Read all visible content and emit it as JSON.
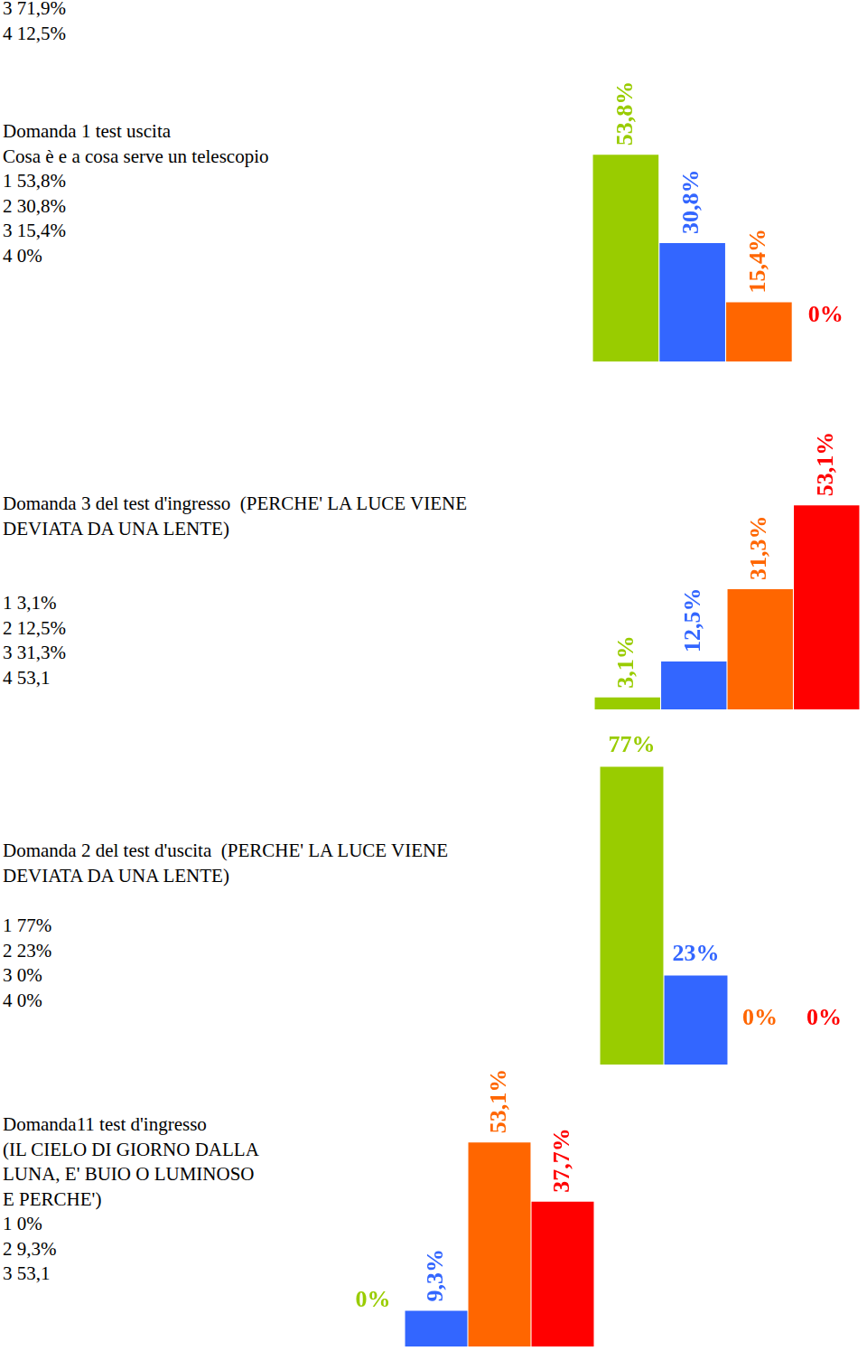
{
  "document": {
    "top_lines": [
      "3 71,9%",
      "4 12,5%"
    ],
    "sections": [
      {
        "heading": [
          "Domanda 1 test uscita",
          "Cosa è e a cosa serve un telescopio"
        ],
        "options": [
          "1 53,8%",
          "2 30,8%",
          "3 15,4%",
          "4 0%"
        ]
      },
      {
        "heading": [
          "Domanda 3 del test d'ingresso  (PERCHE' LA LUCE VIENE",
          "DEVIATA DA UNA LENTE)"
        ],
        "options": [
          "1 3,1%",
          "2 12,5%",
          "3 31,3%",
          "4 53,1"
        ]
      },
      {
        "heading": [
          "Domanda 2 del test d'uscita  (PERCHE' LA LUCE VIENE",
          "DEVIATA DA UNA LENTE)"
        ],
        "options": [
          "1 77%",
          "2 23%",
          "3 0%",
          "4 0%"
        ]
      },
      {
        "heading": [
          "Domanda11 test d'ingresso",
          "(IL CIELO DI GIORNO DALLA",
          "LUNA, E' BUIO O LUMINOSO",
          "E PERCHE')"
        ],
        "options": [
          "1 0%",
          "2 9,3%",
          "3 53,1"
        ]
      }
    ]
  },
  "chart_data": [
    {
      "type": "bar",
      "categories": [
        null,
        null,
        null,
        null
      ],
      "values": [
        53.8,
        30.8,
        15.4,
        0
      ],
      "value_labels": [
        "53,8%",
        "30,8%",
        "15,4%",
        "0%"
      ],
      "colors": [
        "#99cc00",
        "#3366ff",
        "#ff6600",
        "#ff0000"
      ],
      "ylim": [
        0,
        80
      ],
      "data_labels": true,
      "tick_labels": false,
      "grid": false
    },
    {
      "type": "bar",
      "categories": [
        null,
        null,
        null,
        null
      ],
      "values": [
        3.1,
        12.5,
        31.3,
        53.1
      ],
      "value_labels": [
        "3,1%",
        "12,5%",
        "31,3%",
        "53,1%"
      ],
      "colors": [
        "#99cc00",
        "#3366ff",
        "#ff6600",
        "#ff0000"
      ],
      "ylim": [
        0,
        80
      ],
      "data_labels": true,
      "tick_labels": false,
      "grid": false
    },
    {
      "type": "bar",
      "categories": [
        null,
        null,
        null,
        null
      ],
      "values": [
        77,
        23,
        0,
        0
      ],
      "value_labels": [
        "77%",
        "23%",
        "0%",
        "0%"
      ],
      "colors": [
        "#99cc00",
        "#3366ff",
        "#ff6600",
        "#ff0000"
      ],
      "ylim": [
        0,
        90
      ],
      "data_labels": true,
      "tick_labels": false,
      "grid": false
    },
    {
      "type": "bar",
      "categories": [
        null,
        null,
        null,
        null
      ],
      "values": [
        0,
        9.3,
        53.1,
        37.7
      ],
      "value_labels": [
        "0%",
        "9,3%",
        "53,1%",
        "37,7%"
      ],
      "colors": [
        "#99cc00",
        "#3366ff",
        "#ff6600",
        "#ff0000"
      ],
      "ylim": [
        0,
        80
      ],
      "data_labels": true,
      "tick_labels": false,
      "grid": false
    }
  ]
}
